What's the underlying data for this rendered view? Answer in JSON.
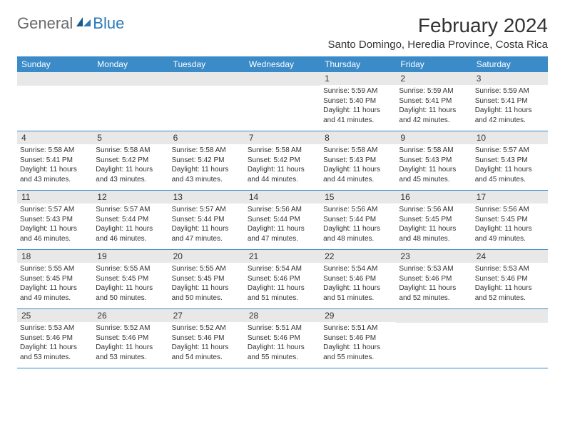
{
  "logo": {
    "general": "General",
    "blue": "Blue"
  },
  "title": "February 2024",
  "location": "Santo Domingo, Heredia Province, Costa Rica",
  "colors": {
    "header_bar": "#3b8bc8",
    "daynum_bg": "#e8e8e8",
    "text": "#333333",
    "logo_gray": "#6a6a6a",
    "logo_blue": "#2a7ab8"
  },
  "weekdays": [
    "Sunday",
    "Monday",
    "Tuesday",
    "Wednesday",
    "Thursday",
    "Friday",
    "Saturday"
  ],
  "weeks": [
    [
      null,
      null,
      null,
      null,
      {
        "n": "1",
        "sunrise": "Sunrise: 5:59 AM",
        "sunset": "Sunset: 5:40 PM",
        "daylight": "Daylight: 11 hours and 41 minutes."
      },
      {
        "n": "2",
        "sunrise": "Sunrise: 5:59 AM",
        "sunset": "Sunset: 5:41 PM",
        "daylight": "Daylight: 11 hours and 42 minutes."
      },
      {
        "n": "3",
        "sunrise": "Sunrise: 5:59 AM",
        "sunset": "Sunset: 5:41 PM",
        "daylight": "Daylight: 11 hours and 42 minutes."
      }
    ],
    [
      {
        "n": "4",
        "sunrise": "Sunrise: 5:58 AM",
        "sunset": "Sunset: 5:41 PM",
        "daylight": "Daylight: 11 hours and 43 minutes."
      },
      {
        "n": "5",
        "sunrise": "Sunrise: 5:58 AM",
        "sunset": "Sunset: 5:42 PM",
        "daylight": "Daylight: 11 hours and 43 minutes."
      },
      {
        "n": "6",
        "sunrise": "Sunrise: 5:58 AM",
        "sunset": "Sunset: 5:42 PM",
        "daylight": "Daylight: 11 hours and 43 minutes."
      },
      {
        "n": "7",
        "sunrise": "Sunrise: 5:58 AM",
        "sunset": "Sunset: 5:42 PM",
        "daylight": "Daylight: 11 hours and 44 minutes."
      },
      {
        "n": "8",
        "sunrise": "Sunrise: 5:58 AM",
        "sunset": "Sunset: 5:43 PM",
        "daylight": "Daylight: 11 hours and 44 minutes."
      },
      {
        "n": "9",
        "sunrise": "Sunrise: 5:58 AM",
        "sunset": "Sunset: 5:43 PM",
        "daylight": "Daylight: 11 hours and 45 minutes."
      },
      {
        "n": "10",
        "sunrise": "Sunrise: 5:57 AM",
        "sunset": "Sunset: 5:43 PM",
        "daylight": "Daylight: 11 hours and 45 minutes."
      }
    ],
    [
      {
        "n": "11",
        "sunrise": "Sunrise: 5:57 AM",
        "sunset": "Sunset: 5:43 PM",
        "daylight": "Daylight: 11 hours and 46 minutes."
      },
      {
        "n": "12",
        "sunrise": "Sunrise: 5:57 AM",
        "sunset": "Sunset: 5:44 PM",
        "daylight": "Daylight: 11 hours and 46 minutes."
      },
      {
        "n": "13",
        "sunrise": "Sunrise: 5:57 AM",
        "sunset": "Sunset: 5:44 PM",
        "daylight": "Daylight: 11 hours and 47 minutes."
      },
      {
        "n": "14",
        "sunrise": "Sunrise: 5:56 AM",
        "sunset": "Sunset: 5:44 PM",
        "daylight": "Daylight: 11 hours and 47 minutes."
      },
      {
        "n": "15",
        "sunrise": "Sunrise: 5:56 AM",
        "sunset": "Sunset: 5:44 PM",
        "daylight": "Daylight: 11 hours and 48 minutes."
      },
      {
        "n": "16",
        "sunrise": "Sunrise: 5:56 AM",
        "sunset": "Sunset: 5:45 PM",
        "daylight": "Daylight: 11 hours and 48 minutes."
      },
      {
        "n": "17",
        "sunrise": "Sunrise: 5:56 AM",
        "sunset": "Sunset: 5:45 PM",
        "daylight": "Daylight: 11 hours and 49 minutes."
      }
    ],
    [
      {
        "n": "18",
        "sunrise": "Sunrise: 5:55 AM",
        "sunset": "Sunset: 5:45 PM",
        "daylight": "Daylight: 11 hours and 49 minutes."
      },
      {
        "n": "19",
        "sunrise": "Sunrise: 5:55 AM",
        "sunset": "Sunset: 5:45 PM",
        "daylight": "Daylight: 11 hours and 50 minutes."
      },
      {
        "n": "20",
        "sunrise": "Sunrise: 5:55 AM",
        "sunset": "Sunset: 5:45 PM",
        "daylight": "Daylight: 11 hours and 50 minutes."
      },
      {
        "n": "21",
        "sunrise": "Sunrise: 5:54 AM",
        "sunset": "Sunset: 5:46 PM",
        "daylight": "Daylight: 11 hours and 51 minutes."
      },
      {
        "n": "22",
        "sunrise": "Sunrise: 5:54 AM",
        "sunset": "Sunset: 5:46 PM",
        "daylight": "Daylight: 11 hours and 51 minutes."
      },
      {
        "n": "23",
        "sunrise": "Sunrise: 5:53 AM",
        "sunset": "Sunset: 5:46 PM",
        "daylight": "Daylight: 11 hours and 52 minutes."
      },
      {
        "n": "24",
        "sunrise": "Sunrise: 5:53 AM",
        "sunset": "Sunset: 5:46 PM",
        "daylight": "Daylight: 11 hours and 52 minutes."
      }
    ],
    [
      {
        "n": "25",
        "sunrise": "Sunrise: 5:53 AM",
        "sunset": "Sunset: 5:46 PM",
        "daylight": "Daylight: 11 hours and 53 minutes."
      },
      {
        "n": "26",
        "sunrise": "Sunrise: 5:52 AM",
        "sunset": "Sunset: 5:46 PM",
        "daylight": "Daylight: 11 hours and 53 minutes."
      },
      {
        "n": "27",
        "sunrise": "Sunrise: 5:52 AM",
        "sunset": "Sunset: 5:46 PM",
        "daylight": "Daylight: 11 hours and 54 minutes."
      },
      {
        "n": "28",
        "sunrise": "Sunrise: 5:51 AM",
        "sunset": "Sunset: 5:46 PM",
        "daylight": "Daylight: 11 hours and 55 minutes."
      },
      {
        "n": "29",
        "sunrise": "Sunrise: 5:51 AM",
        "sunset": "Sunset: 5:46 PM",
        "daylight": "Daylight: 11 hours and 55 minutes."
      },
      null,
      null
    ]
  ]
}
